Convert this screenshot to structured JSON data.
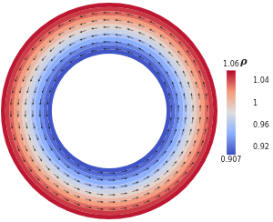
{
  "chart_data": {
    "type": "doughnut",
    "marker": "arrow",
    "density_rings": [
      0.91,
      0.918,
      0.93,
      0.945,
      0.96,
      0.975,
      0.99,
      1.005,
      1.02,
      1.034,
      1.046,
      1.055
    ],
    "colorbar": {
      "label": "ρ",
      "range": [
        0.907,
        1.06
      ],
      "ticks": [
        0.92,
        0.96,
        1,
        1.04
      ]
    }
  }
}
